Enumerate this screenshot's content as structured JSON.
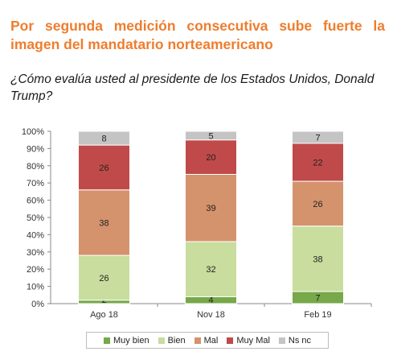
{
  "header": {
    "headline": "Por segunda medición consecutiva sube fuerte la imagen del mandatario norteamericano",
    "question": "¿Cómo evalúa usted al presidente de los Estados Unidos, Donald Trump?"
  },
  "chart_data": {
    "type": "bar",
    "stacked": true,
    "categories": [
      "Ago 18",
      "Nov 18",
      "Feb 19"
    ],
    "series": [
      {
        "name": "Muy bien",
        "color": "#77a84a",
        "values": [
          2,
          4,
          7
        ]
      },
      {
        "name": "Bien",
        "color": "#c9dd9e",
        "values": [
          26,
          32,
          38
        ]
      },
      {
        "name": "Mal",
        "color": "#d4936d",
        "values": [
          38,
          39,
          26
        ]
      },
      {
        "name": "Muy Mal",
        "color": "#c04a4a",
        "values": [
          26,
          20,
          22
        ]
      },
      {
        "name": "Ns nc",
        "color": "#c4c4c4",
        "values": [
          8,
          5,
          7
        ]
      }
    ],
    "ylim": [
      0,
      100
    ],
    "yticks": [
      "0%",
      "10%",
      "20%",
      "30%",
      "40%",
      "50%",
      "60%",
      "70%",
      "80%",
      "90%",
      "100%"
    ],
    "grid": false,
    "legend_position": "bottom"
  }
}
